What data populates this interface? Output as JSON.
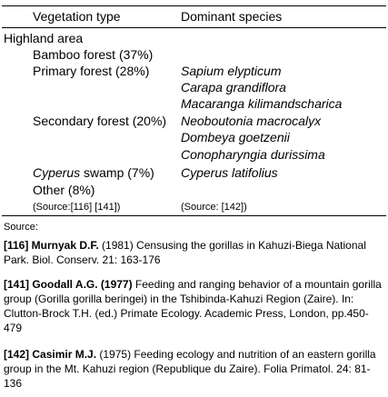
{
  "table": {
    "headers": {
      "vegetation": "Vegetation type",
      "species": "Dominant species"
    },
    "area_label": "Highland area",
    "rows": [
      {
        "type": "Bamboo forest (37%)",
        "species": []
      },
      {
        "type": "Primary forest (28%)",
        "species": [
          "Sapium elypticum",
          "Carapa grandiflora",
          "Macaranga kilimandscharica"
        ]
      },
      {
        "type": "Secondary forest (20%)",
        "species": [
          "Neoboutonia macrocalyx",
          "Dombeya goetzenii",
          "Conopharyngia durissima"
        ]
      },
      {
        "type_italic": "Cyperus",
        "type_rest": " swamp (7%)",
        "species": [
          "Cyperus latifolius"
        ]
      },
      {
        "type": "Other (8%)",
        "species": []
      }
    ],
    "source_left": "(Source:[116] [141])",
    "source_right": "(Source: [142])"
  },
  "sources": {
    "label": "Source:",
    "refs": [
      {
        "num_author": "[116] Murnyak D.F.",
        "text": " (1981) Censusing the gorillas in Kahuzi-Biega National Park. Biol. Conserv. 21: 163-176"
      },
      {
        "num_author": "[141] Goodall A.G. (1977)",
        "text": " Feeding and ranging behavior of a mountain gorilla group (Gorilla gorilla beringei) in the Tshibinda-Kahuzi Region (Zaire). In: Clutton-Brock T.H. (ed.) Primate Ecology.  Academic Press, London, pp.450-479"
      },
      {
        "num_author": "[142] Casimir M.J.",
        "text": " (1975) Feeding ecology and nutrition of an eastern gorilla group in the Mt. Kahuzi region (Republique du Zaire). Folia Primatol. 24: 81-136"
      }
    ]
  }
}
